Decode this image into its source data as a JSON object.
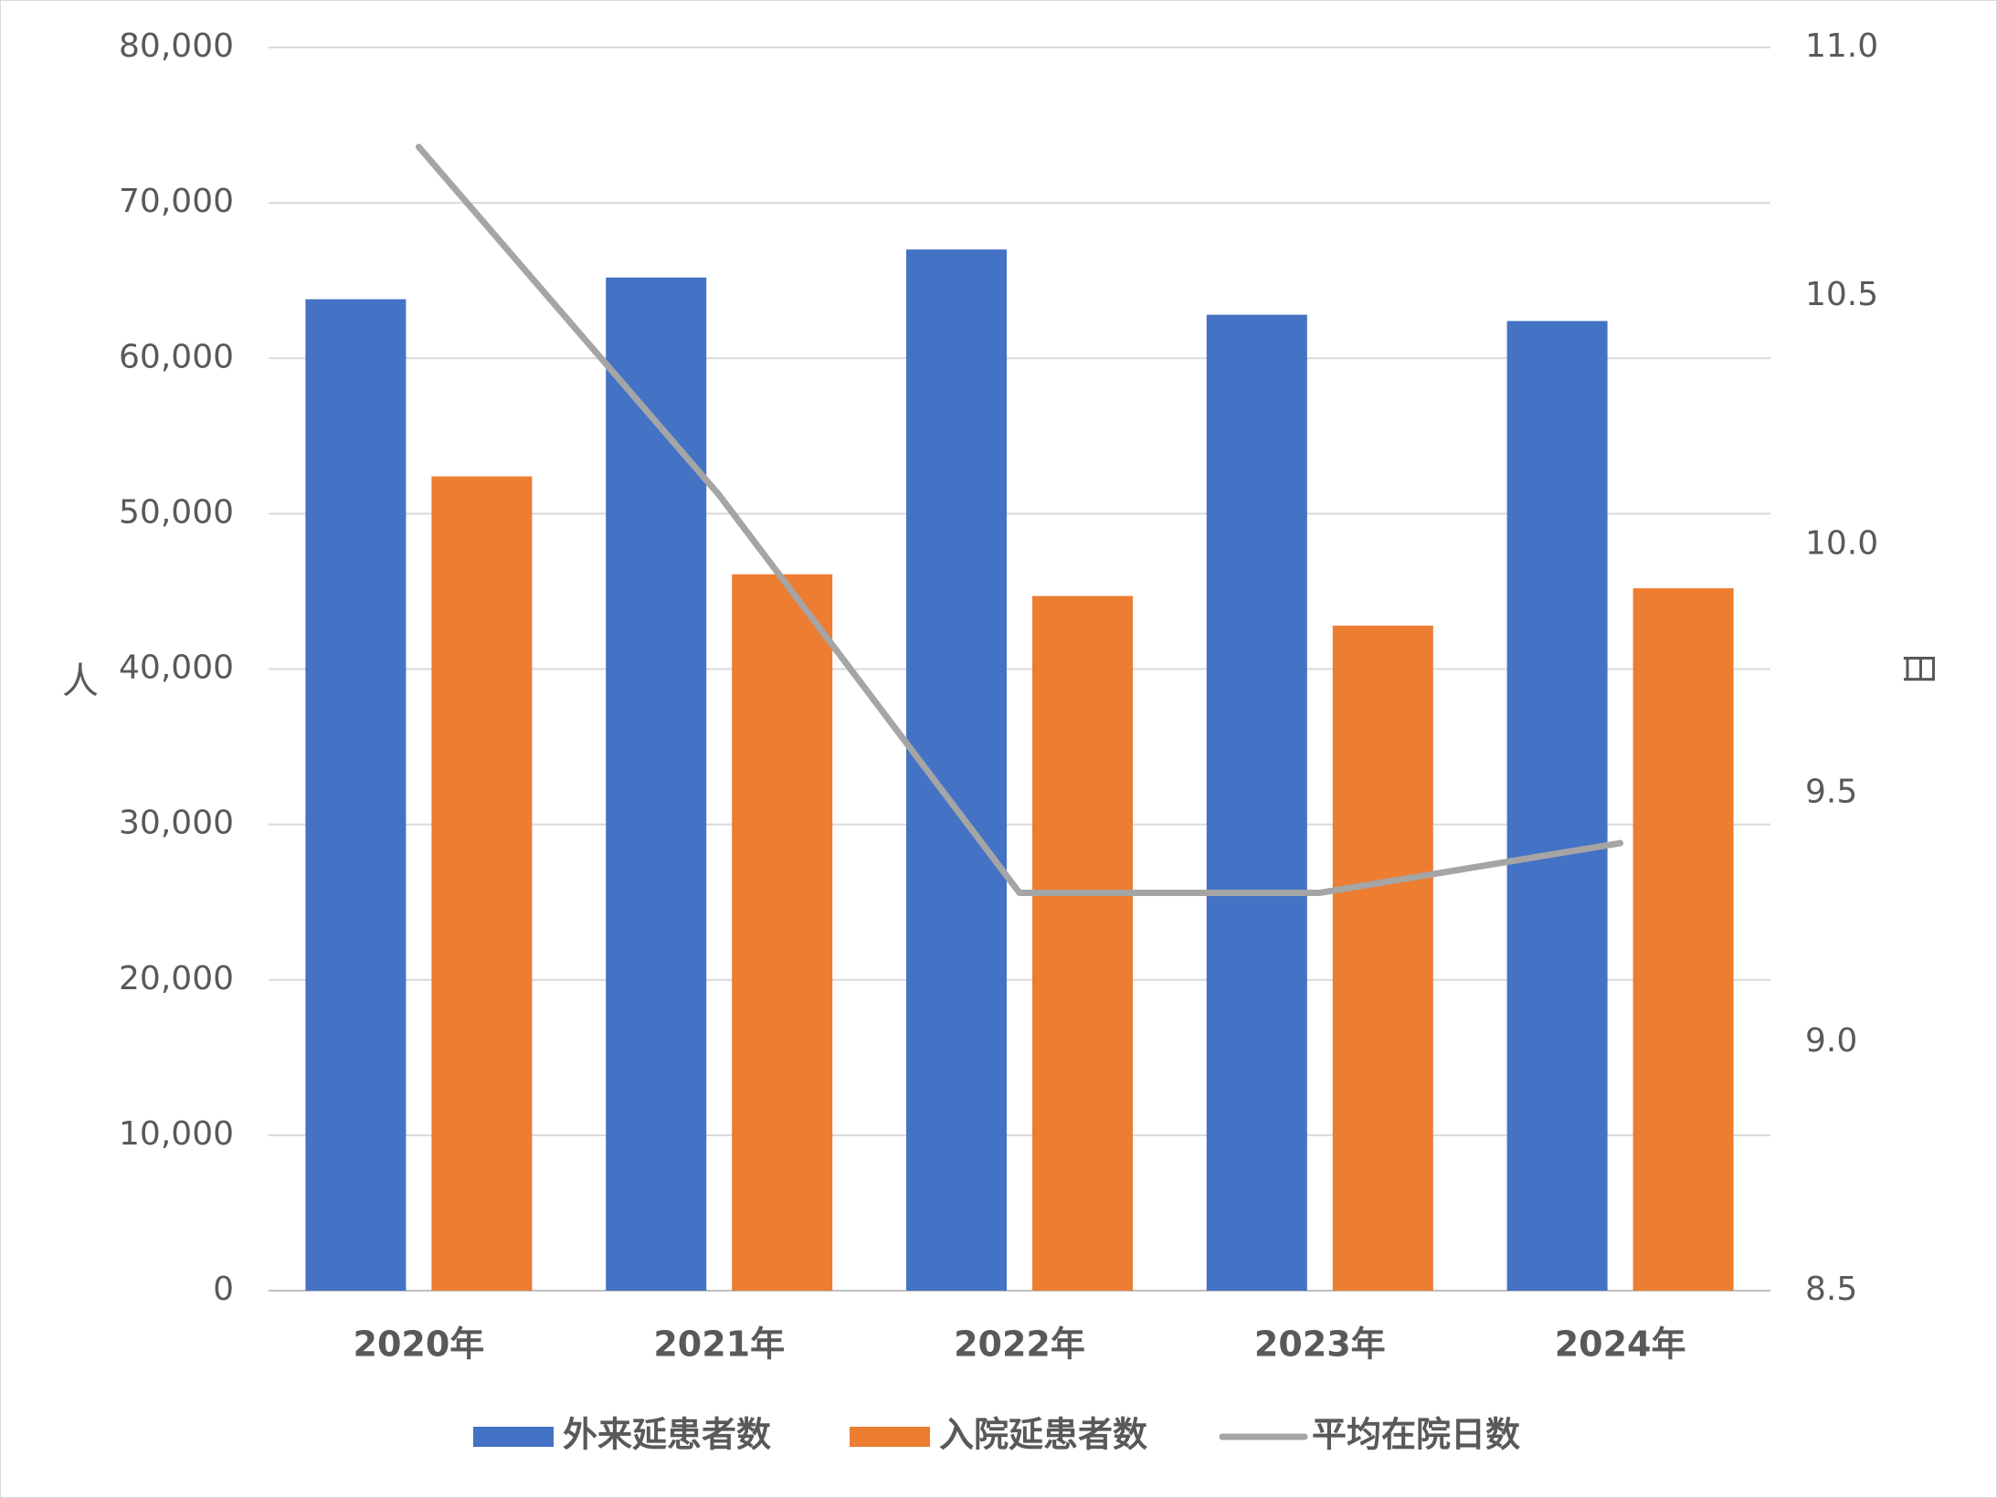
{
  "chart_data": {
    "type": "bar",
    "categories": [
      "2020年",
      "2021年",
      "2022年",
      "2023年",
      "2024年"
    ],
    "series": [
      {
        "name": "外来延患者数",
        "type": "bar",
        "axis": "left",
        "color": "#4472C4",
        "values": [
          63800,
          65200,
          67000,
          62800,
          62400
        ]
      },
      {
        "name": "入院延患者数",
        "type": "bar",
        "axis": "left",
        "color": "#ED7D31",
        "values": [
          52400,
          46100,
          44700,
          42800,
          45200
        ]
      },
      {
        "name": "平均在院日数",
        "type": "line",
        "axis": "right",
        "color": "#A5A5A5",
        "values": [
          10.8,
          10.1,
          9.3,
          9.3,
          9.4
        ]
      }
    ],
    "ylabel": "人",
    "ylabel_right": "日",
    "ylim": [
      0,
      80000
    ],
    "ylim_right": [
      8.5,
      11.0
    ],
    "yticks": [
      "0",
      "10,000",
      "20,000",
      "30,000",
      "40,000",
      "50,000",
      "60,000",
      "70,000",
      "80,000"
    ],
    "yticks_right": [
      "8.5",
      "9.0",
      "9.5",
      "10.0",
      "10.5",
      "11.0"
    ],
    "grid": true,
    "legend_position": "bottom"
  }
}
